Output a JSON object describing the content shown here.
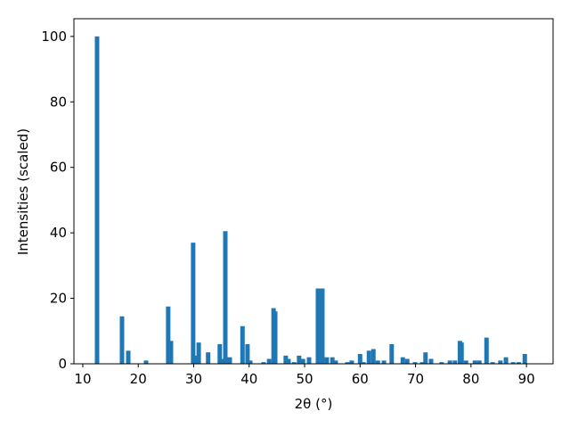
{
  "chart_data": {
    "type": "bar",
    "xlabel": "2θ (°)",
    "ylabel": "Intensities (scaled)",
    "color": "#1f77b4",
    "bar_width": 0.8,
    "x": [
      12.57,
      17.07,
      18.2,
      21.4,
      25.4,
      25.9,
      29.9,
      30.4,
      30.9,
      32.6,
      34.7,
      35.2,
      35.7,
      36.5,
      38.8,
      39.7,
      40.2,
      42.6,
      43.6,
      44.4,
      44.7,
      46.6,
      47.1,
      48.1,
      49.0,
      49.7,
      50.8,
      52.4,
      53.2,
      54.0,
      55.0,
      55.6,
      57.7,
      58.5,
      60.0,
      60.6,
      61.6,
      62.4,
      63.2,
      64.3,
      65.7,
      67.7,
      68.5,
      69.9,
      71.2,
      71.8,
      72.8,
      74.7,
      76.2,
      77.1,
      78.0,
      78.3,
      79.1,
      80.7,
      81.5,
      82.8,
      83.9,
      85.3,
      86.3,
      87.6,
      88.6,
      89.7
    ],
    "values": [
      100,
      14.5,
      4,
      1,
      17.5,
      7,
      37,
      2.5,
      6.5,
      3.5,
      6,
      1.5,
      40.5,
      2,
      11.5,
      6,
      1,
      0.5,
      1.5,
      17,
      16,
      2.5,
      1.5,
      0.5,
      2.5,
      1.5,
      2,
      23,
      23,
      2,
      2,
      1,
      0.5,
      1,
      3,
      0.5,
      4,
      4.5,
      1,
      1,
      6,
      2,
      1.5,
      0.5,
      0.5,
      3.5,
      1.5,
      0.5,
      1,
      1,
      7,
      6.5,
      1,
      1,
      1,
      8,
      0.5,
      1,
      2,
      0.5,
      0.5,
      3
    ],
    "xlim": [
      8.4,
      94.8
    ],
    "ylim": [
      0,
      105.4
    ],
    "xticks": [
      10,
      20,
      30,
      40,
      50,
      60,
      70,
      80,
      90
    ],
    "yticks": [
      0,
      20,
      40,
      60,
      80,
      100
    ]
  }
}
